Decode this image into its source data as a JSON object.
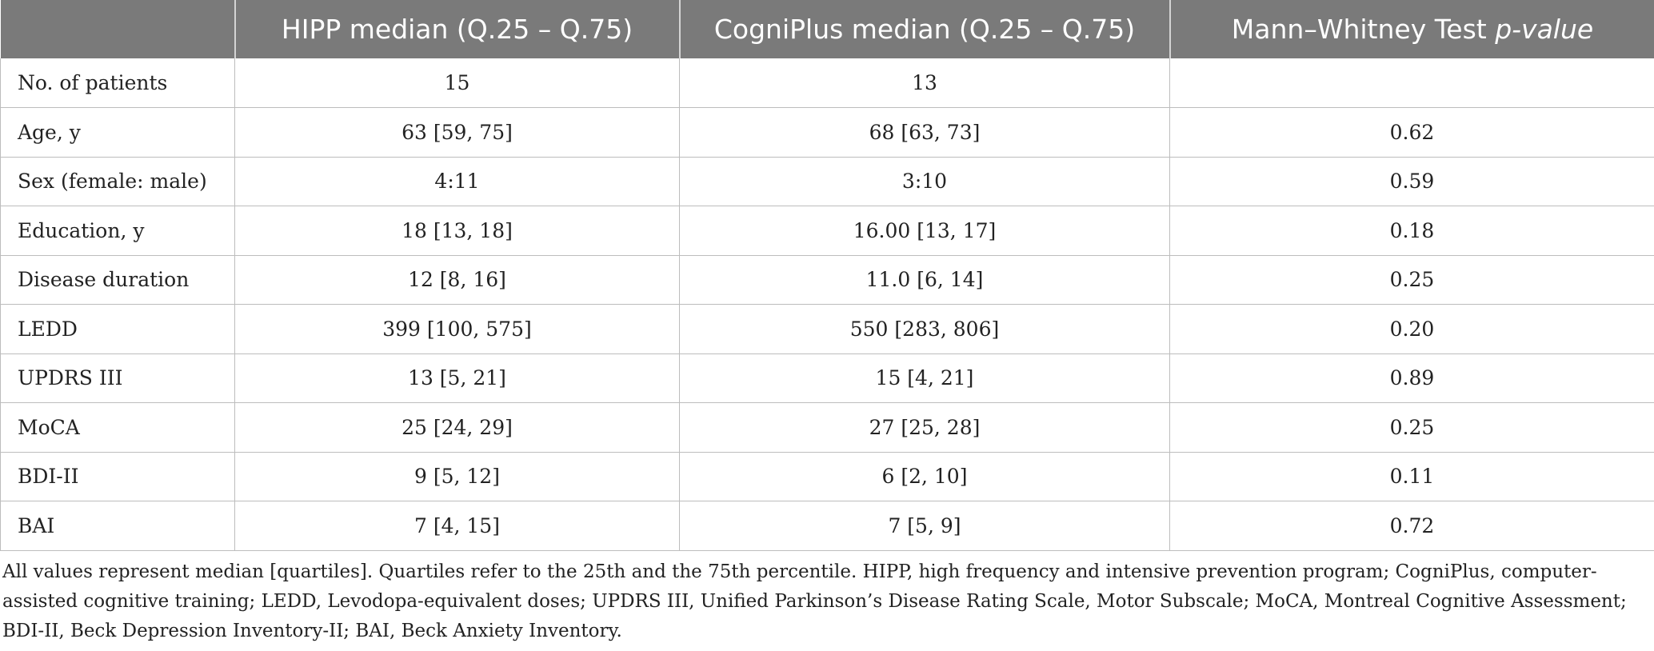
{
  "table": {
    "headers": [
      "",
      "HIPP median (Q.25 – Q.75)",
      "CogniPlus median (Q.25 – Q.75)",
      "Mann–Whitney Test",
      "p-value"
    ],
    "rows": [
      {
        "label": "No. of patients",
        "hipp": "15",
        "cogniplus": "13",
        "p": ""
      },
      {
        "label": "Age, y",
        "hipp": "63 [59, 75]",
        "cogniplus": "68 [63, 73]",
        "p": "0.62"
      },
      {
        "label": "Sex (female: male)",
        "hipp": "4:11",
        "cogniplus": "3:10",
        "p": "0.59"
      },
      {
        "label": "Education, y",
        "hipp": "18 [13, 18]",
        "cogniplus": "16.00 [13, 17]",
        "p": "0.18"
      },
      {
        "label": "Disease duration",
        "hipp": "12 [8, 16]",
        "cogniplus": "11.0 [6, 14]",
        "p": "0.25"
      },
      {
        "label": "LEDD",
        "hipp": "399 [100, 575]",
        "cogniplus": "550 [283, 806]",
        "p": "0.20"
      },
      {
        "label": "UPDRS III",
        "hipp": "13 [5, 21]",
        "cogniplus": "15 [4, 21]",
        "p": "0.89"
      },
      {
        "label": "MoCA",
        "hipp": "25 [24, 29]",
        "cogniplus": "27 [25, 28]",
        "p": "0.25"
      },
      {
        "label": "BDI-II",
        "hipp": "9 [5, 12]",
        "cogniplus": "6 [2, 10]",
        "p": "0.11"
      },
      {
        "label": "BAI",
        "hipp": "7 [4, 15]",
        "cogniplus": "7 [5, 9]",
        "p": "0.72"
      }
    ]
  },
  "footnote": "All values represent median [quartiles]. Quartiles refer to the 25th and the 75th percentile. HIPP, high frequency and intensive prevention program; CogniPlus, computer-assisted cognitive training; LEDD, Levodopa-equivalent doses; UPDRS III, Unified Parkinson’s Disease Rating Scale, Motor Subscale; MoCA, Montreal Cognitive Assessment; BDI-II, Beck Depression Inventory-II; BAI, Beck Anxiety Inventory.",
  "colors": {
    "header_background": "#7a7a7a",
    "header_text": "#ffffff",
    "grid_line": "#bdbdbd",
    "body_text": "#222222"
  }
}
